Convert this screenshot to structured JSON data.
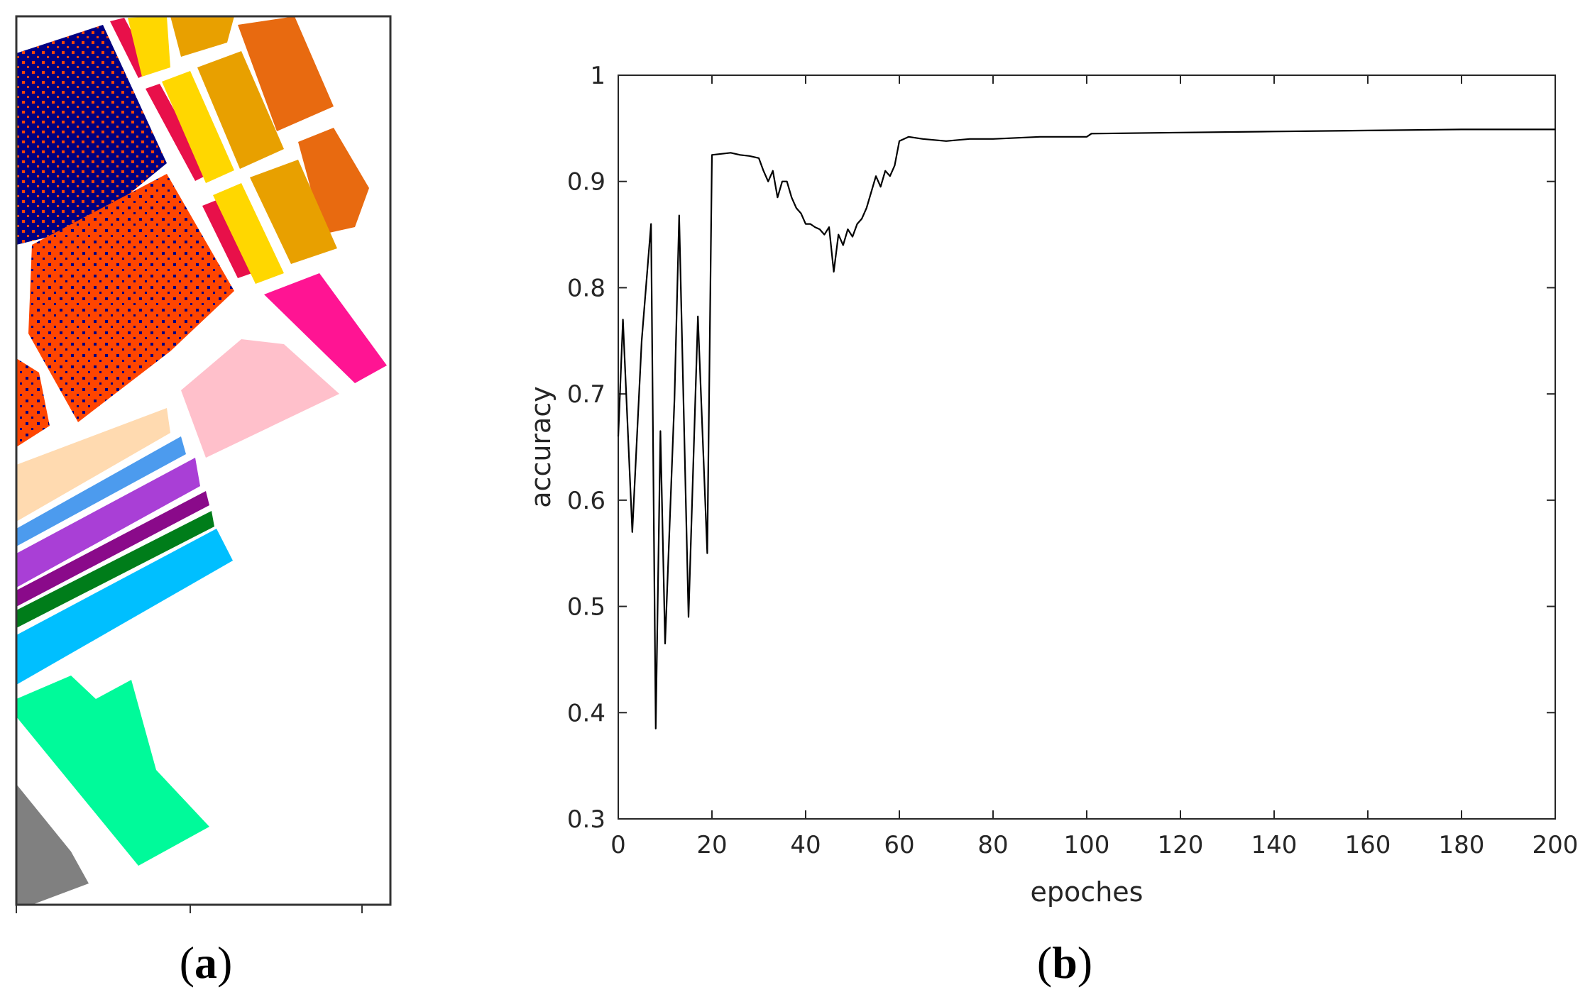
{
  "panels": [
    {
      "label_open": "(",
      "label_letter": "a",
      "label_close": ")",
      "content": "classification map",
      "class_colors": [
        "#000080",
        "#FF4500",
        "#FFD700",
        "#E8A000",
        "#E86A10",
        "#E8104A",
        "#FF1493",
        "#FFC0CB",
        "#FFDAB0",
        "#4C9BEE",
        "#A93FD6",
        "#8A0A8A",
        "#007D1A",
        "#00BFFF",
        "#00FA9A",
        "#808080"
      ]
    },
    {
      "label_open": "(",
      "label_letter": "b",
      "label_close": ")"
    }
  ],
  "chart_data": {
    "type": "line",
    "title": "",
    "xlabel": "epoches",
    "ylabel": "accuracy",
    "xlim": [
      0,
      200
    ],
    "ylim": [
      0.3,
      1
    ],
    "xticks": [
      "0",
      "20",
      "40",
      "60",
      "80",
      "100",
      "120",
      "140",
      "160",
      "180",
      "200"
    ],
    "yticks": [
      "0.3",
      "0.4",
      "0.5",
      "0.6",
      "0.7",
      "0.8",
      "0.9",
      "1"
    ],
    "grid": false,
    "line_color": "#000000",
    "x": [
      0,
      1,
      3,
      5,
      7,
      8,
      9,
      10,
      12,
      13,
      15,
      17,
      19,
      20,
      22,
      24,
      26,
      28,
      30,
      31,
      32,
      33,
      34,
      35,
      36,
      37,
      38,
      39,
      40,
      41,
      42,
      43,
      44,
      45,
      46,
      47,
      48,
      49,
      50,
      51,
      52,
      53,
      54,
      55,
      56,
      57,
      58,
      59,
      60,
      62,
      65,
      70,
      75,
      80,
      90,
      100,
      101,
      120,
      140,
      160,
      180,
      200
    ],
    "y": [
      0.66,
      0.77,
      0.57,
      0.75,
      0.86,
      0.385,
      0.665,
      0.465,
      0.695,
      0.868,
      0.49,
      0.773,
      0.55,
      0.925,
      0.926,
      0.927,
      0.925,
      0.924,
      0.922,
      0.91,
      0.9,
      0.91,
      0.885,
      0.9,
      0.9,
      0.885,
      0.875,
      0.87,
      0.86,
      0.86,
      0.857,
      0.855,
      0.85,
      0.857,
      0.815,
      0.85,
      0.84,
      0.855,
      0.848,
      0.86,
      0.865,
      0.875,
      0.89,
      0.905,
      0.895,
      0.91,
      0.905,
      0.915,
      0.938,
      0.942,
      0.94,
      0.938,
      0.94,
      0.94,
      0.942,
      0.942,
      0.945,
      0.946,
      0.947,
      0.948,
      0.949,
      0.949
    ]
  }
}
